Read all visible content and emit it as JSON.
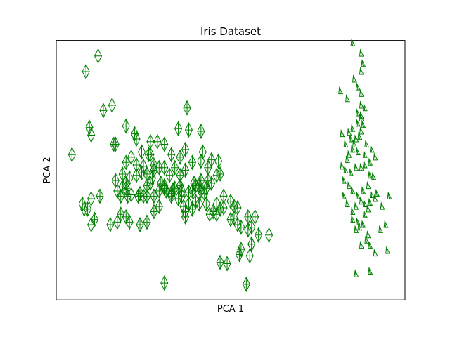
{
  "chart_data": {
    "type": "scatter",
    "title": "Iris Dataset",
    "xlabel": "PCA 1",
    "ylabel": "PCA 2",
    "xlim": [
      0,
      100
    ],
    "ylim": [
      0,
      100
    ],
    "xticks": false,
    "yticks": false,
    "grid": false,
    "legend": "none",
    "colors": {
      "marker": "#008000"
    },
    "series": [
      {
        "marker": "thin_diamond",
        "points": [
          [
            12,
            94
          ],
          [
            8.5,
            88
          ],
          [
            16,
            75
          ],
          [
            13.5,
            73
          ],
          [
            9.5,
            66.5
          ],
          [
            4.5,
            56
          ],
          [
            10,
            63.5
          ],
          [
            16.5,
            60
          ],
          [
            17,
            60
          ],
          [
            20,
            67
          ],
          [
            22.5,
            64
          ],
          [
            23,
            62
          ],
          [
            24.5,
            57
          ],
          [
            26.5,
            56
          ],
          [
            27,
            61
          ],
          [
            29,
            61
          ],
          [
            31,
            60
          ],
          [
            27,
            56
          ],
          [
            28,
            50
          ],
          [
            29.5,
            51
          ],
          [
            31,
            51
          ],
          [
            33,
            56
          ],
          [
            34,
            51
          ],
          [
            35.5,
            55
          ],
          [
            37,
            58
          ],
          [
            38,
            65.5
          ],
          [
            35,
            66
          ],
          [
            37.5,
            74
          ],
          [
            41.5,
            65
          ],
          [
            42,
            57
          ],
          [
            41.5,
            53.5
          ],
          [
            39,
            53
          ],
          [
            37,
            50
          ],
          [
            35.5,
            48
          ],
          [
            32.5,
            48
          ],
          [
            30,
            45
          ],
          [
            27,
            45
          ],
          [
            26,
            48.5
          ],
          [
            28,
            52
          ],
          [
            23,
            48
          ],
          [
            21,
            47
          ],
          [
            19,
            48.5
          ],
          [
            20,
            53
          ],
          [
            21.5,
            55
          ],
          [
            23,
            52
          ],
          [
            24.5,
            49
          ],
          [
            25,
            51.5
          ],
          [
            31,
            44
          ],
          [
            33.5,
            42.5
          ],
          [
            36,
            40
          ],
          [
            38,
            41.5
          ],
          [
            40,
            44
          ],
          [
            41.5,
            46
          ],
          [
            42.5,
            41
          ],
          [
            44.5,
            45
          ],
          [
            46,
            48
          ],
          [
            47,
            48.5
          ],
          [
            46.5,
            53.5
          ],
          [
            44.5,
            54
          ],
          [
            43.5,
            51
          ],
          [
            43.5,
            46
          ],
          [
            43,
            43
          ],
          [
            41.5,
            42
          ],
          [
            41,
            44
          ],
          [
            39.5,
            45
          ],
          [
            39,
            42
          ],
          [
            36,
            42
          ],
          [
            35.5,
            44
          ],
          [
            34,
            43
          ],
          [
            33,
            40
          ],
          [
            31.5,
            42
          ],
          [
            29.5,
            42
          ],
          [
            28,
            40
          ],
          [
            26,
            40
          ],
          [
            25,
            40
          ],
          [
            23.5,
            40
          ],
          [
            20.5,
            40
          ],
          [
            18.5,
            40
          ],
          [
            20,
            43
          ],
          [
            19,
            43.5
          ],
          [
            17.5,
            42
          ],
          [
            17,
            46
          ],
          [
            20,
            45
          ],
          [
            21.5,
            40.5
          ],
          [
            24,
            41
          ],
          [
            26,
            44
          ],
          [
            27.5,
            47
          ],
          [
            31,
            43
          ],
          [
            33,
            41
          ],
          [
            35,
            39
          ],
          [
            36.5,
            36
          ],
          [
            38,
            37
          ],
          [
            37,
            34
          ],
          [
            37,
            32
          ],
          [
            39,
            35
          ],
          [
            40,
            38
          ],
          [
            41,
            37
          ],
          [
            43,
            37
          ],
          [
            44,
            33
          ],
          [
            45,
            34
          ],
          [
            46,
            33
          ],
          [
            47,
            35
          ],
          [
            48,
            40
          ],
          [
            50,
            38
          ],
          [
            51,
            36
          ],
          [
            52,
            35.5
          ],
          [
            51,
            31.5
          ],
          [
            50,
            31
          ],
          [
            52,
            29
          ],
          [
            53,
            28
          ],
          [
            55,
            27
          ],
          [
            56,
            28
          ],
          [
            55,
            32
          ],
          [
            57,
            32
          ],
          [
            58,
            25
          ],
          [
            56,
            21.5
          ],
          [
            53,
            19.5
          ],
          [
            52.5,
            17.5
          ],
          [
            55.5,
            17
          ],
          [
            61,
            25
          ],
          [
            56,
            21.5
          ],
          [
            49,
            14
          ],
          [
            47,
            14.5
          ],
          [
            31,
            6.5
          ],
          [
            54.5,
            6
          ],
          [
            48,
            35.5
          ],
          [
            46,
            37
          ],
          [
            29.5,
            36
          ],
          [
            28,
            34
          ],
          [
            26,
            30
          ],
          [
            24,
            29
          ],
          [
            21,
            30
          ],
          [
            20,
            32
          ],
          [
            18.5,
            33
          ],
          [
            17.5,
            30
          ],
          [
            15.5,
            29
          ],
          [
            11,
            31
          ],
          [
            10,
            29
          ],
          [
            9,
            35
          ],
          [
            8,
            35
          ],
          [
            7.5,
            37
          ],
          [
            10,
            39
          ],
          [
            12.5,
            40
          ]
        ]
      },
      {
        "marker": "tri_up",
        "points": [
          [
            85,
            99
          ],
          [
            87.5,
            95
          ],
          [
            88,
            91
          ],
          [
            87.5,
            88
          ],
          [
            81.5,
            80.5
          ],
          [
            83.5,
            77.5
          ],
          [
            87.5,
            79.5
          ],
          [
            87.5,
            75
          ],
          [
            86.5,
            72
          ],
          [
            87.5,
            70
          ],
          [
            88,
            67.5
          ],
          [
            87.5,
            65
          ],
          [
            87,
            63
          ],
          [
            86,
            62
          ],
          [
            85.5,
            60
          ],
          [
            84.5,
            62
          ],
          [
            84,
            64.5
          ],
          [
            82,
            64
          ],
          [
            83,
            60
          ],
          [
            85,
            58
          ],
          [
            86.5,
            57
          ],
          [
            88.5,
            56
          ],
          [
            89,
            60
          ],
          [
            90.5,
            58
          ],
          [
            91.5,
            55
          ],
          [
            90,
            53
          ],
          [
            88.5,
            52
          ],
          [
            87.5,
            51
          ],
          [
            86,
            51
          ],
          [
            84.5,
            49
          ],
          [
            83,
            50
          ],
          [
            82.5,
            46
          ],
          [
            84,
            44
          ],
          [
            85,
            42
          ],
          [
            86.5,
            40
          ],
          [
            88,
            42
          ],
          [
            89.5,
            44
          ],
          [
            90,
            48
          ],
          [
            91,
            47.5
          ],
          [
            92,
            41
          ],
          [
            91.5,
            39
          ],
          [
            90,
            37.5
          ],
          [
            88.5,
            37
          ],
          [
            87.5,
            38
          ],
          [
            86,
            36
          ],
          [
            85,
            34
          ],
          [
            86.5,
            30
          ],
          [
            88,
            29
          ],
          [
            89.5,
            25
          ],
          [
            90,
            21
          ],
          [
            91.5,
            18
          ],
          [
            90,
            11
          ],
          [
            86,
            10
          ],
          [
            87,
            28
          ],
          [
            88.5,
            33
          ],
          [
            89.5,
            35
          ],
          [
            90.5,
            40.5
          ],
          [
            93.5,
            36
          ],
          [
            95,
            19
          ],
          [
            95.5,
            40
          ],
          [
            94.5,
            29
          ],
          [
            93,
            27
          ],
          [
            89,
            23
          ],
          [
            87.5,
            21
          ],
          [
            86,
            27
          ],
          [
            85,
            31
          ],
          [
            83.5,
            37
          ],
          [
            82.5,
            40
          ],
          [
            83.5,
            54
          ],
          [
            82,
            51.5
          ],
          [
            84,
            56
          ],
          [
            85,
            66
          ],
          [
            86.5,
            68
          ],
          [
            87.5,
            71
          ],
          [
            88.5,
            74
          ],
          [
            86.5,
            82
          ],
          [
            85.5,
            85
          ]
        ]
      }
    ]
  }
}
